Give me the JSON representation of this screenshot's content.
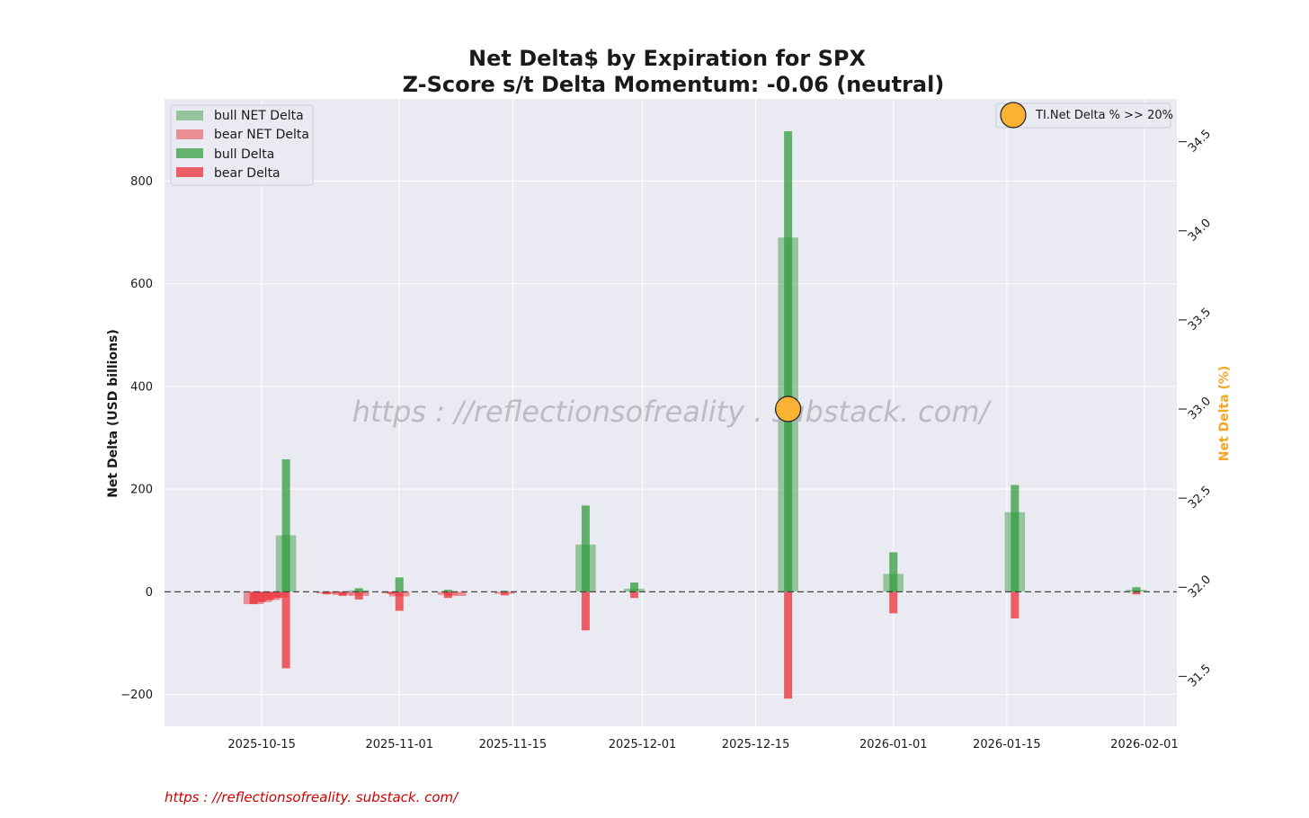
{
  "chart_data": {
    "type": "bar",
    "title": "Net Delta$ by Expiration for SPX",
    "subtitle": "Z-Score s/t Delta Momentum: -0.06 (neutral)",
    "ylabel": "Net Delta (USD billions)",
    "y2label": "Net Delta (%)",
    "ylim": [
      -262,
      960
    ],
    "y2lim": [
      31.22,
      34.74
    ],
    "xlim": [
      "2025-10-03",
      "2026-02-05"
    ],
    "yticks": [
      -200,
      0,
      200,
      400,
      600,
      800
    ],
    "y2ticks": [
      "31.5",
      "32.0",
      "32.5",
      "33.0",
      "33.5",
      "34.0",
      "34.5"
    ],
    "xticks": [
      "2025-10-15",
      "2025-11-01",
      "2025-11-15",
      "2025-12-01",
      "2025-12-15",
      "2026-01-01",
      "2026-01-15",
      "2026-02-01"
    ],
    "zero_line": "dashed",
    "grid": true,
    "legend_position": "top-left",
    "legend": [
      "bull NET Delta",
      "bear NET Delta",
      "bull Delta",
      "bear Delta"
    ],
    "series": [
      {
        "name": "bull NET Delta",
        "color": "#4fa35a",
        "points": [
          {
            "x": "2025-10-18",
            "y": 110
          },
          {
            "x": "2025-10-27",
            "y": 3
          },
          {
            "x": "2025-11-24",
            "y": 92
          },
          {
            "x": "2025-11-30",
            "y": 6
          },
          {
            "x": "2025-12-19",
            "y": 690
          },
          {
            "x": "2026-01-01",
            "y": 35
          },
          {
            "x": "2026-01-16",
            "y": 155
          },
          {
            "x": "2026-01-31",
            "y": 4
          }
        ]
      },
      {
        "name": "bear NET Delta",
        "color": "#e8686e",
        "points": [
          {
            "x": "2025-10-14",
            "y": -24
          },
          {
            "x": "2025-10-15",
            "y": -20
          },
          {
            "x": "2025-10-16",
            "y": -16
          },
          {
            "x": "2025-10-17",
            "y": -12
          },
          {
            "x": "2025-10-23",
            "y": -3
          },
          {
            "x": "2025-10-24",
            "y": -4
          },
          {
            "x": "2025-10-25",
            "y": -6
          },
          {
            "x": "2025-10-27",
            "y": -8
          },
          {
            "x": "2025-10-31",
            "y": -3
          },
          {
            "x": "2025-11-01",
            "y": -9
          },
          {
            "x": "2025-11-07",
            "y": -6
          },
          {
            "x": "2025-11-08",
            "y": -8
          },
          {
            "x": "2025-11-14",
            "y": -4
          }
        ]
      },
      {
        "name": "bull Delta",
        "color": "#2b9a36",
        "points": [
          {
            "x": "2025-10-18",
            "y": 258
          },
          {
            "x": "2025-10-27",
            "y": 7
          },
          {
            "x": "2025-11-01",
            "y": 28
          },
          {
            "x": "2025-11-07",
            "y": 4
          },
          {
            "x": "2025-11-14",
            "y": 2
          },
          {
            "x": "2025-11-24",
            "y": 168
          },
          {
            "x": "2025-11-30",
            "y": 18
          },
          {
            "x": "2025-12-19",
            "y": 897
          },
          {
            "x": "2026-01-01",
            "y": 77
          },
          {
            "x": "2026-01-16",
            "y": 208
          },
          {
            "x": "2026-01-31",
            "y": 9
          }
        ]
      },
      {
        "name": "bear Delta",
        "color": "#ee3a42",
        "points": [
          {
            "x": "2025-10-14",
            "y": -24
          },
          {
            "x": "2025-10-15",
            "y": -20
          },
          {
            "x": "2025-10-16",
            "y": -16
          },
          {
            "x": "2025-10-17",
            "y": -12
          },
          {
            "x": "2025-10-18",
            "y": -149
          },
          {
            "x": "2025-10-23",
            "y": -5
          },
          {
            "x": "2025-10-25",
            "y": -8
          },
          {
            "x": "2025-10-27",
            "y": -15
          },
          {
            "x": "2025-10-31",
            "y": -4
          },
          {
            "x": "2025-11-01",
            "y": -37
          },
          {
            "x": "2025-11-07",
            "y": -12
          },
          {
            "x": "2025-11-14",
            "y": -7
          },
          {
            "x": "2025-11-24",
            "y": -75
          },
          {
            "x": "2025-11-30",
            "y": -12
          },
          {
            "x": "2025-12-19",
            "y": -208
          },
          {
            "x": "2026-01-01",
            "y": -42
          },
          {
            "x": "2026-01-16",
            "y": -52
          },
          {
            "x": "2026-01-31",
            "y": -5
          }
        ]
      }
    ],
    "marker": {
      "label": "TI.Net Delta % >> 20%",
      "x": "2025-12-19",
      "y2": 33.0,
      "color": "#f9b234"
    }
  },
  "watermark": "https : //reflectionsofreality . substack. com/",
  "footer": "https : //reflectionsofreality. substack. com/"
}
